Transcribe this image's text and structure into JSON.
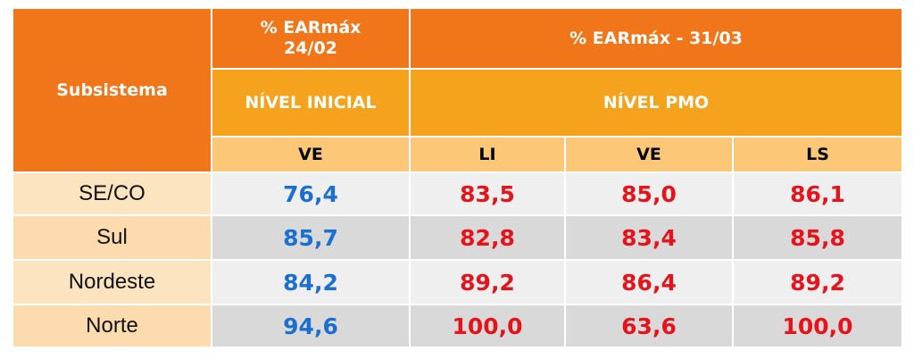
{
  "table": {
    "header": {
      "subsystem": "Subsistema",
      "col_initial": "% EARmáx 24/02",
      "col_pmo": "% EARmáx - 31/03",
      "level_initial": "NÍVEL INICIAL",
      "level_pmo": "NÍVEL PMO",
      "sub_headers": [
        "VE",
        "LI",
        "VE",
        "LS"
      ]
    },
    "rows": [
      [
        "SE/CO",
        "76,4",
        "83,5",
        "85,0",
        "86,1"
      ],
      [
        "Sul",
        "85,7",
        "82,8",
        "83,4",
        "85,8"
      ],
      [
        "Nordeste",
        "84,2",
        "89,2",
        "86,4",
        "89,2"
      ],
      [
        "Norte",
        "94,6",
        "100,0",
        "63,6",
        "100,0"
      ]
    ]
  }
}
